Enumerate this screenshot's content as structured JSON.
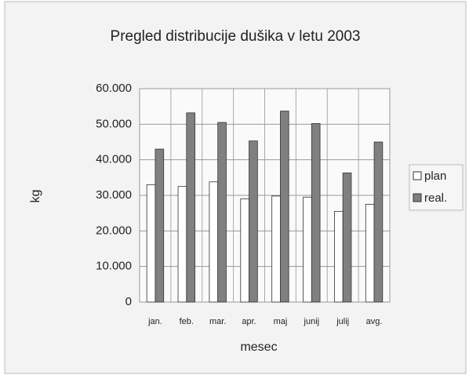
{
  "chart_data": {
    "type": "bar",
    "title": "Pregled distribucije dušika v letu 2003",
    "x_label": "mesec",
    "y_label": "kg",
    "categories": [
      "jan.",
      "feb.",
      "mar.",
      "apr.",
      "maj",
      "junij",
      "julij",
      "avg."
    ],
    "series": [
      {
        "name": "plan",
        "color": "#ffffff",
        "values": [
          33000,
          32500,
          33800,
          29000,
          29800,
          29500,
          25500,
          27500
        ]
      },
      {
        "name": "real.",
        "color": "#808080",
        "values": [
          43000,
          53200,
          50500,
          45300,
          53700,
          50200,
          36300,
          45000
        ]
      }
    ],
    "ylim": [
      0,
      60000
    ],
    "yticks": [
      0,
      {
        "value": 10000,
        "label": "10.000"
      },
      {
        "value": 20000,
        "label": "20.000"
      },
      {
        "value": 30000,
        "label": "30.000"
      },
      {
        "value": 40000,
        "label": "40.000"
      },
      {
        "value": 50000,
        "label": "50.000"
      },
      {
        "value": 60000,
        "label": "60.000"
      }
    ],
    "grid": true,
    "legend": "right"
  }
}
